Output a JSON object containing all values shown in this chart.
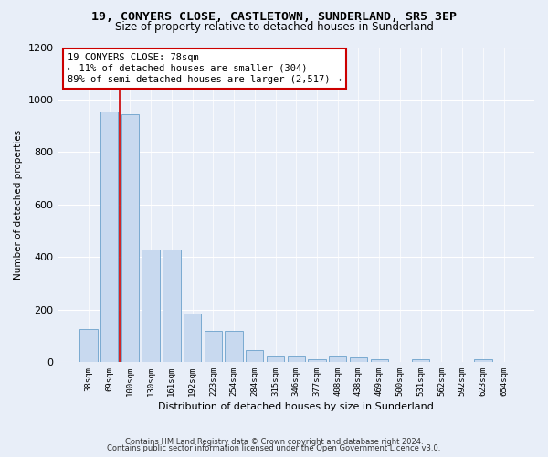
{
  "title1": "19, CONYERS CLOSE, CASTLETOWN, SUNDERLAND, SR5 3EP",
  "title2": "Size of property relative to detached houses in Sunderland",
  "xlabel": "Distribution of detached houses by size in Sunderland",
  "ylabel": "Number of detached properties",
  "categories": [
    "38sqm",
    "69sqm",
    "100sqm",
    "130sqm",
    "161sqm",
    "192sqm",
    "223sqm",
    "254sqm",
    "284sqm",
    "315sqm",
    "346sqm",
    "377sqm",
    "408sqm",
    "438sqm",
    "469sqm",
    "500sqm",
    "531sqm",
    "562sqm",
    "592sqm",
    "623sqm",
    "654sqm"
  ],
  "values": [
    125,
    955,
    945,
    430,
    430,
    185,
    120,
    120,
    45,
    20,
    20,
    12,
    20,
    18,
    10,
    0,
    10,
    0,
    0,
    10,
    0
  ],
  "bar_color": "#c8d9ef",
  "bar_edge_color": "#7aaad0",
  "vline_x_index": 1.5,
  "vline_color": "#cc0000",
  "annotation_line1": "19 CONYERS CLOSE: 78sqm",
  "annotation_line2": "← 11% of detached houses are smaller (304)",
  "annotation_line3": "89% of semi-detached houses are larger (2,517) →",
  "annotation_box_color": "#ffffff",
  "annotation_box_edge": "#cc0000",
  "ylim": [
    0,
    1200
  ],
  "yticks": [
    0,
    200,
    400,
    600,
    800,
    1000,
    1200
  ],
  "footer1": "Contains HM Land Registry data © Crown copyright and database right 2024.",
  "footer2": "Contains public sector information licensed under the Open Government Licence v3.0.",
  "bg_color": "#e8eef8",
  "plot_bg_color": "#e8eef8",
  "grid_color": "#ffffff",
  "title1_fontsize": 9.5,
  "title2_fontsize": 8.5
}
